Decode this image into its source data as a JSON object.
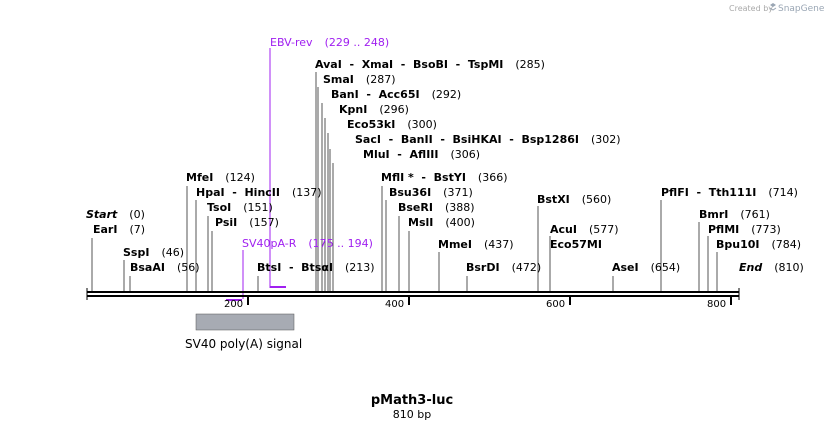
{
  "credit": {
    "prefix": "Created by",
    "brand": "SnapGene"
  },
  "map": {
    "name": "pMath3-luc",
    "length_label": "810 bp",
    "length": 810,
    "ticks": [
      200,
      400,
      600,
      800
    ],
    "colors": {
      "primer": "#a020f0",
      "feature": "#a7abb3",
      "backbone": "#000000"
    }
  },
  "ends": [
    {
      "name": "Start",
      "pos": "(0)"
    },
    {
      "name": "End",
      "pos": "(810)"
    }
  ],
  "sites": [
    {
      "name": "EarI",
      "pos": "(7)"
    },
    {
      "name": "SspI",
      "pos": "(46)"
    },
    {
      "name": "BsaAI",
      "pos": "(56)"
    },
    {
      "name": "MfeI",
      "pos": "(124)"
    },
    {
      "name": "HpaI  -  HincII",
      "pos": "(137)"
    },
    {
      "name": "TsoI",
      "pos": "(151)"
    },
    {
      "name": "PsiI",
      "pos": "(157)"
    },
    {
      "name": "BtsI  -  BtsαI",
      "pos": "(213)"
    },
    {
      "name": "AvaI  -  XmaI  -  BsoBI  -  TspMI",
      "pos": "(285)"
    },
    {
      "name": "SmaI",
      "pos": "(287)"
    },
    {
      "name": "BanI  -  Acc65I",
      "pos": "(292)"
    },
    {
      "name": "KpnI",
      "pos": "(296)"
    },
    {
      "name": "Eco53kI",
      "pos": "(300)"
    },
    {
      "name": "SacI  -  BanII  -  BsiHKAI  -  Bsp1286I",
      "pos": "(302)"
    },
    {
      "name": "MluI  -  AflIII",
      "pos": "(306)"
    },
    {
      "name": "MflI *  -  BstYI",
      "pos": "(366)"
    },
    {
      "name": "Bsu36I",
      "pos": "(371)"
    },
    {
      "name": "BseRI",
      "pos": "(388)"
    },
    {
      "name": "MslI",
      "pos": "(400)"
    },
    {
      "name": "MmeI",
      "pos": "(437)"
    },
    {
      "name": "BsrDI",
      "pos": "(472)"
    },
    {
      "name": "BstXI",
      "pos": "(560)"
    },
    {
      "name": "AcuI",
      "pos": "(577)"
    },
    {
      "name": "Eco57MI",
      "pos": ""
    },
    {
      "name": "AseI",
      "pos": "(654)"
    },
    {
      "name": "PflFI  -  Tth111I",
      "pos": "(714)"
    },
    {
      "name": "BmrI",
      "pos": "(761)"
    },
    {
      "name": "PflMI",
      "pos": "(773)"
    },
    {
      "name": "Bpu10I",
      "pos": "(784)"
    }
  ],
  "primers": [
    {
      "name": "EBV-rev",
      "range": "(229 .. 248)"
    },
    {
      "name": "SV40pA-R",
      "range": "(175 .. 194)"
    }
  ],
  "features": [
    {
      "name": "SV40 poly(A) signal"
    }
  ]
}
